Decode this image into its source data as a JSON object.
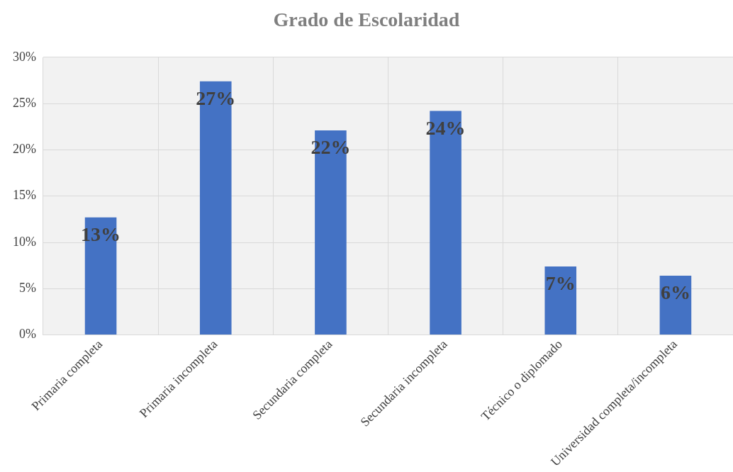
{
  "chart_data": {
    "type": "bar",
    "title": "Grado de Escolaridad",
    "categories": [
      "Primaria completa",
      "Primaria incompleta",
      "Secundaria completa",
      "Secundaria incompleta",
      "Técnico o diplomado",
      "Universidad completa/incompleta"
    ],
    "values": [
      12.7,
      27.4,
      22.1,
      24.2,
      7.4,
      6.4
    ],
    "value_labels": [
      "13%",
      "27%",
      "22%",
      "24%",
      "7%",
      "6%"
    ],
    "color": "#4472c4",
    "ylim": [
      0,
      30
    ],
    "yticks": [
      {
        "value": 0,
        "label": "0%"
      },
      {
        "value": 5,
        "label": "5%"
      },
      {
        "value": 10,
        "label": "10%"
      },
      {
        "value": 15,
        "label": "15%"
      },
      {
        "value": 20,
        "label": "20%"
      },
      {
        "value": 25,
        "label": "25%"
      },
      {
        "value": 30,
        "label": "30%"
      }
    ],
    "grid": true,
    "legend": false
  }
}
